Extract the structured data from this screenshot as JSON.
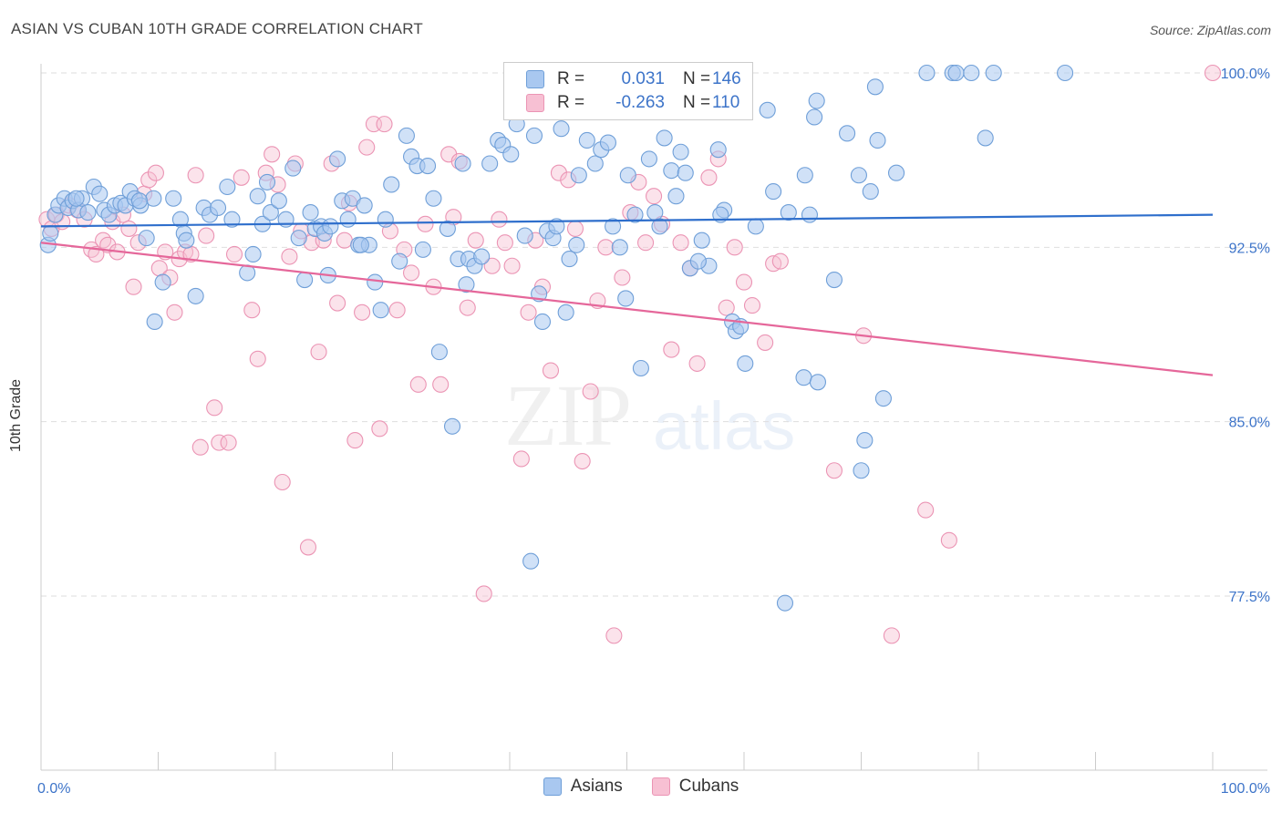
{
  "title": "ASIAN VS CUBAN 10TH GRADE CORRELATION CHART",
  "source": "Source: ZipAtlas.com",
  "watermark": {
    "part1": "ZIP",
    "part2": "atlas"
  },
  "legend": {
    "rows": [
      {
        "r_label": "R =",
        "r_value": "0.031",
        "n_label": "N =",
        "n_value": "146"
      },
      {
        "r_label": "R =",
        "r_value": "-0.263",
        "n_label": "N =",
        "n_value": "110"
      }
    ]
  },
  "bottom_legend": [
    "Asians",
    "Cubans"
  ],
  "colors": {
    "asian_fill": "#a9c8f0",
    "asian_stroke": "#6f9fd8",
    "asian_line": "#2f6fcc",
    "cuban_fill": "#f7c0d3",
    "cuban_stroke": "#eb94b4",
    "cuban_line": "#e5679a",
    "tick_text": "#3d74c9"
  },
  "chart_data": {
    "type": "scatter",
    "title": "ASIAN VS CUBAN 10TH GRADE CORRELATION CHART",
    "xlabel": "",
    "ylabel": "10th Grade",
    "xlim": [
      0,
      100
    ],
    "ylim": [
      71,
      101.5
    ],
    "x_tick_labels": [
      "0.0%",
      "100.0%"
    ],
    "y_ticks": [
      77.5,
      85.0,
      92.5,
      100.0
    ],
    "y_tick_labels": [
      "77.5%",
      "85.0%",
      "92.5%",
      "100.0%"
    ],
    "grid": "horizontal dashed",
    "legend_position": "top-center",
    "series": [
      {
        "name": "Asians",
        "R": 0.031,
        "N": 146,
        "trend": {
          "x": [
            0,
            100
          ],
          "y": [
            93.4,
            93.9
          ]
        },
        "points": [
          [
            0.6,
            92.6
          ],
          [
            0.8,
            93.1
          ],
          [
            1.2,
            93.9
          ],
          [
            1.5,
            94.3
          ],
          [
            2.0,
            94.6
          ],
          [
            2.3,
            94.2
          ],
          [
            2.7,
            94.5
          ],
          [
            3.2,
            94.1
          ],
          [
            3.5,
            94.6
          ],
          [
            4.0,
            94.0
          ],
          [
            4.5,
            95.1
          ],
          [
            5.0,
            94.8
          ],
          [
            5.4,
            94.1
          ],
          [
            5.8,
            93.9
          ],
          [
            6.3,
            94.3
          ],
          [
            6.8,
            94.4
          ],
          [
            7.2,
            94.3
          ],
          [
            7.6,
            94.9
          ],
          [
            8.0,
            94.6
          ],
          [
            8.5,
            94.3
          ],
          [
            9.0,
            92.9
          ],
          [
            9.6,
            94.6
          ],
          [
            10.4,
            91.0
          ],
          [
            11.3,
            94.6
          ],
          [
            11.9,
            93.7
          ],
          [
            12.2,
            93.1
          ],
          [
            13.2,
            90.4
          ],
          [
            13.9,
            94.2
          ],
          [
            14.4,
            93.9
          ],
          [
            15.1,
            94.2
          ],
          [
            15.9,
            95.1
          ],
          [
            16.3,
            93.7
          ],
          [
            17.6,
            91.4
          ],
          [
            18.1,
            92.2
          ],
          [
            18.9,
            93.5
          ],
          [
            19.3,
            95.3
          ],
          [
            19.6,
            94.0
          ],
          [
            20.3,
            94.5
          ],
          [
            20.9,
            93.7
          ],
          [
            21.5,
            95.9
          ],
          [
            22.0,
            92.9
          ],
          [
            22.5,
            91.1
          ],
          [
            23.0,
            94.0
          ],
          [
            23.4,
            93.3
          ],
          [
            23.9,
            93.4
          ],
          [
            24.2,
            93.1
          ],
          [
            24.7,
            93.4
          ],
          [
            25.3,
            96.3
          ],
          [
            25.7,
            94.5
          ],
          [
            26.2,
            93.7
          ],
          [
            26.6,
            94.6
          ],
          [
            27.1,
            92.6
          ],
          [
            27.6,
            94.3
          ],
          [
            28.0,
            92.6
          ],
          [
            28.5,
            91.0
          ],
          [
            29.0,
            89.8
          ],
          [
            29.4,
            93.7
          ],
          [
            29.9,
            95.2
          ],
          [
            30.6,
            91.9
          ],
          [
            31.2,
            97.3
          ],
          [
            31.6,
            96.4
          ],
          [
            32.1,
            96.0
          ],
          [
            32.6,
            92.4
          ],
          [
            33.0,
            96.0
          ],
          [
            33.5,
            94.6
          ],
          [
            34.0,
            88.0
          ],
          [
            34.7,
            93.3
          ],
          [
            35.1,
            84.8
          ],
          [
            35.6,
            92.0
          ],
          [
            36.0,
            96.1
          ],
          [
            36.5,
            92.0
          ],
          [
            37.0,
            91.7
          ],
          [
            37.6,
            92.1
          ],
          [
            38.3,
            96.1
          ],
          [
            39.0,
            97.1
          ],
          [
            39.4,
            96.9
          ],
          [
            40.1,
            96.5
          ],
          [
            40.6,
            97.8
          ],
          [
            41.3,
            93.0
          ],
          [
            41.8,
            79.0
          ],
          [
            42.1,
            97.3
          ],
          [
            42.5,
            90.5
          ],
          [
            42.8,
            89.3
          ],
          [
            43.2,
            93.2
          ],
          [
            43.7,
            92.9
          ],
          [
            44.0,
            93.4
          ],
          [
            44.4,
            97.6
          ],
          [
            44.8,
            89.7
          ],
          [
            45.1,
            92.0
          ],
          [
            45.9,
            95.6
          ],
          [
            46.6,
            97.1
          ],
          [
            47.3,
            96.1
          ],
          [
            47.8,
            96.7
          ],
          [
            48.4,
            97.0
          ],
          [
            48.8,
            93.4
          ],
          [
            49.4,
            92.5
          ],
          [
            50.1,
            95.6
          ],
          [
            50.7,
            93.9
          ],
          [
            51.2,
            87.3
          ],
          [
            51.9,
            96.3
          ],
          [
            52.4,
            94.0
          ],
          [
            52.8,
            93.4
          ],
          [
            53.2,
            97.2
          ],
          [
            53.8,
            95.8
          ],
          [
            54.2,
            94.7
          ],
          [
            54.6,
            96.6
          ],
          [
            55.0,
            95.7
          ],
          [
            55.4,
            91.6
          ],
          [
            56.4,
            92.8
          ],
          [
            57.0,
            91.7
          ],
          [
            57.8,
            96.7
          ],
          [
            58.3,
            94.1
          ],
          [
            59.0,
            89.3
          ],
          [
            59.3,
            88.9
          ],
          [
            59.7,
            89.1
          ],
          [
            60.1,
            87.5
          ],
          [
            61.0,
            93.4
          ],
          [
            62.0,
            98.4
          ],
          [
            62.5,
            94.9
          ],
          [
            63.5,
            77.2
          ],
          [
            63.8,
            94.0
          ],
          [
            65.2,
            95.6
          ],
          [
            65.6,
            93.9
          ],
          [
            65.1,
            86.9
          ],
          [
            66.2,
            98.8
          ],
          [
            67.7,
            91.1
          ],
          [
            68.8,
            97.4
          ],
          [
            69.8,
            95.6
          ],
          [
            70.3,
            84.2
          ],
          [
            70.8,
            94.9
          ],
          [
            71.4,
            97.1
          ],
          [
            71.9,
            86.0
          ],
          [
            73.0,
            95.7
          ],
          [
            75.6,
            100.0
          ],
          [
            77.8,
            100.0
          ],
          [
            78.1,
            100.0
          ],
          [
            79.4,
            100.0
          ],
          [
            81.3,
            100.0
          ],
          [
            87.4,
            100.0
          ],
          [
            80.6,
            97.2
          ],
          [
            70.0,
            82.9
          ],
          [
            66.3,
            86.7
          ],
          [
            49.9,
            90.3
          ],
          [
            24.5,
            91.3
          ],
          [
            3.0,
            94.6
          ],
          [
            58.0,
            93.9
          ],
          [
            18.5,
            94.7
          ],
          [
            9.7,
            89.3
          ],
          [
            27.3,
            92.6
          ],
          [
            8.4,
            94.5
          ],
          [
            12.4,
            92.8
          ],
          [
            56.1,
            91.9
          ],
          [
            36.3,
            90.9
          ],
          [
            71.2,
            99.4
          ],
          [
            45.7,
            92.6
          ],
          [
            66.0,
            98.1
          ]
        ]
      },
      {
        "name": "Cubans",
        "R": -0.263,
        "N": 110,
        "trend": {
          "x": [
            0,
            100
          ],
          "y": [
            92.7,
            87.0
          ]
        },
        "points": [
          [
            0.5,
            93.7
          ],
          [
            0.9,
            93.3
          ],
          [
            1.3,
            93.9
          ],
          [
            1.8,
            93.6
          ],
          [
            2.4,
            94.3
          ],
          [
            3.1,
            94.1
          ],
          [
            3.7,
            93.7
          ],
          [
            4.3,
            92.4
          ],
          [
            4.7,
            92.2
          ],
          [
            5.3,
            92.8
          ],
          [
            5.7,
            92.6
          ],
          [
            6.1,
            93.6
          ],
          [
            6.5,
            92.3
          ],
          [
            7.0,
            93.9
          ],
          [
            7.5,
            93.3
          ],
          [
            7.9,
            90.8
          ],
          [
            8.3,
            92.7
          ],
          [
            8.8,
            94.8
          ],
          [
            9.2,
            95.4
          ],
          [
            9.8,
            95.7
          ],
          [
            10.1,
            91.6
          ],
          [
            10.6,
            92.3
          ],
          [
            11.0,
            91.2
          ],
          [
            11.4,
            89.7
          ],
          [
            11.8,
            92.0
          ],
          [
            12.3,
            92.3
          ],
          [
            12.8,
            92.2
          ],
          [
            13.2,
            95.6
          ],
          [
            13.6,
            83.9
          ],
          [
            14.1,
            93.0
          ],
          [
            14.8,
            85.6
          ],
          [
            15.2,
            84.1
          ],
          [
            16.0,
            84.1
          ],
          [
            16.5,
            92.2
          ],
          [
            17.1,
            95.5
          ],
          [
            18.0,
            89.8
          ],
          [
            18.5,
            87.7
          ],
          [
            19.2,
            95.7
          ],
          [
            19.7,
            96.5
          ],
          [
            20.2,
            95.2
          ],
          [
            20.6,
            82.4
          ],
          [
            21.2,
            92.1
          ],
          [
            21.7,
            96.1
          ],
          [
            22.2,
            93.2
          ],
          [
            22.8,
            79.6
          ],
          [
            23.1,
            92.7
          ],
          [
            23.7,
            88.0
          ],
          [
            24.1,
            92.8
          ],
          [
            24.8,
            96.1
          ],
          [
            25.3,
            90.1
          ],
          [
            25.9,
            92.8
          ],
          [
            26.3,
            94.4
          ],
          [
            26.8,
            84.2
          ],
          [
            27.4,
            89.7
          ],
          [
            27.8,
            96.8
          ],
          [
            28.4,
            97.8
          ],
          [
            28.9,
            84.7
          ],
          [
            29.3,
            97.8
          ],
          [
            29.8,
            93.2
          ],
          [
            30.4,
            89.8
          ],
          [
            31.0,
            92.4
          ],
          [
            31.6,
            91.4
          ],
          [
            32.2,
            86.6
          ],
          [
            32.8,
            93.5
          ],
          [
            33.5,
            90.8
          ],
          [
            34.1,
            86.6
          ],
          [
            34.8,
            96.5
          ],
          [
            35.2,
            93.8
          ],
          [
            35.7,
            96.2
          ],
          [
            36.4,
            89.9
          ],
          [
            37.1,
            92.8
          ],
          [
            37.8,
            77.6
          ],
          [
            38.5,
            91.7
          ],
          [
            39.1,
            93.7
          ],
          [
            39.6,
            92.7
          ],
          [
            40.2,
            91.7
          ],
          [
            41.0,
            83.4
          ],
          [
            41.6,
            89.7
          ],
          [
            42.2,
            92.8
          ],
          [
            42.8,
            90.8
          ],
          [
            43.5,
            87.2
          ],
          [
            44.2,
            95.7
          ],
          [
            45.0,
            95.4
          ],
          [
            45.6,
            93.3
          ],
          [
            46.2,
            83.3
          ],
          [
            46.9,
            86.3
          ],
          [
            47.5,
            90.2
          ],
          [
            48.2,
            92.5
          ],
          [
            48.9,
            75.8
          ],
          [
            49.6,
            91.2
          ],
          [
            50.3,
            94.0
          ],
          [
            51.0,
            95.3
          ],
          [
            51.6,
            92.7
          ],
          [
            52.3,
            94.7
          ],
          [
            53.0,
            93.5
          ],
          [
            53.8,
            88.1
          ],
          [
            54.6,
            92.7
          ],
          [
            55.4,
            91.6
          ],
          [
            56.0,
            87.5
          ],
          [
            57.0,
            95.5
          ],
          [
            57.8,
            96.3
          ],
          [
            58.5,
            89.9
          ],
          [
            59.2,
            92.5
          ],
          [
            60.0,
            91.0
          ],
          [
            60.7,
            90.0
          ],
          [
            61.8,
            88.4
          ],
          [
            62.5,
            91.8
          ],
          [
            63.1,
            91.9
          ],
          [
            67.7,
            82.9
          ],
          [
            70.2,
            88.7
          ],
          [
            72.6,
            75.8
          ],
          [
            77.5,
            79.9
          ],
          [
            75.5,
            81.2
          ],
          [
            100.0,
            100.0
          ]
        ]
      }
    ]
  }
}
